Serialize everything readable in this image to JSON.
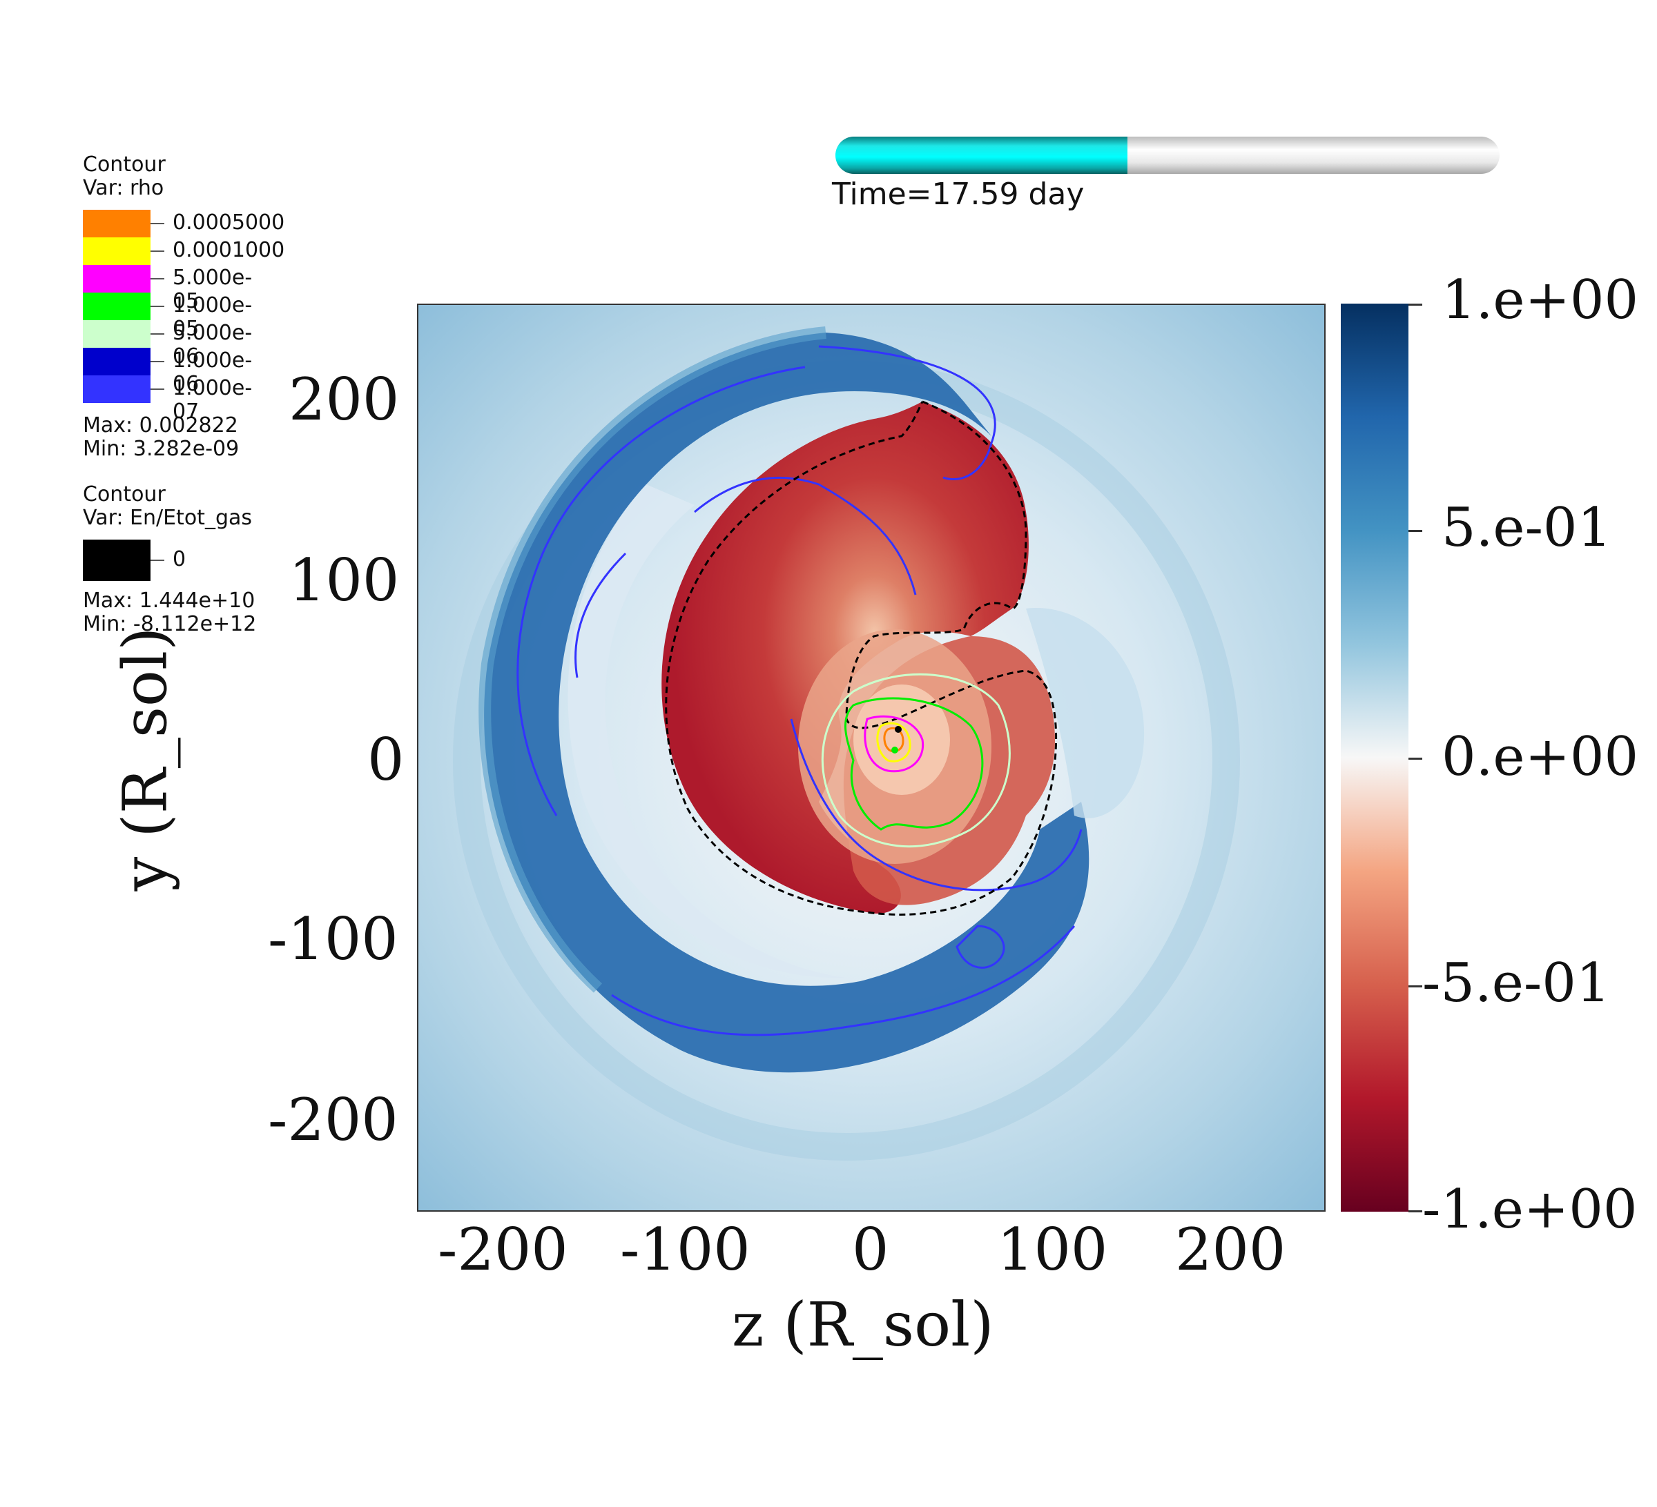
{
  "legend_rho": {
    "title": "Contour",
    "var": "Var: rho",
    "entries": [
      {
        "label": "0.0005000",
        "color": "#ff8000"
      },
      {
        "label": "0.0001000",
        "color": "#ffff00"
      },
      {
        "label": "5.000e-05",
        "color": "#ff00ff"
      },
      {
        "label": "1.000e-05",
        "color": "#00ff00"
      },
      {
        "label": "5.000e-06",
        "color": "#ccffcc"
      },
      {
        "label": "1.000e-06",
        "color": "#0000cc"
      },
      {
        "label": "1.000e-07",
        "color": "#3333ff"
      }
    ],
    "max": "Max:  0.002822",
    "min": "Min:  3.282e-09"
  },
  "legend_energy": {
    "title": "Contour",
    "var": "Var: En/Etot_gas",
    "entries": [
      {
        "label": "0",
        "color": "#000000"
      }
    ],
    "max": "Max:  1.444e+10",
    "min": "Min: -8.112e+12"
  },
  "time": {
    "label": "Time=17.59 day",
    "progress_fraction": 0.44
  },
  "plot": {
    "xlabel": "z (R_sol)",
    "ylabel": "y (R_sol)",
    "xticks": [
      "-200",
      "-100",
      "0",
      "100",
      "200"
    ],
    "yticks": [
      "200",
      "100",
      "0",
      "-100",
      "-200"
    ],
    "range": [
      -250,
      250
    ]
  },
  "colorbar": {
    "labels": [
      "1.e+00",
      "5.e-01",
      "0.e+00",
      "-5.e-01",
      "-1.e+00"
    ],
    "colors": {
      "top": "#053061",
      "upper": "#4393c3",
      "mid": "#f7f7f7",
      "lower": "#d6604d",
      "bottom": "#67001f"
    }
  }
}
